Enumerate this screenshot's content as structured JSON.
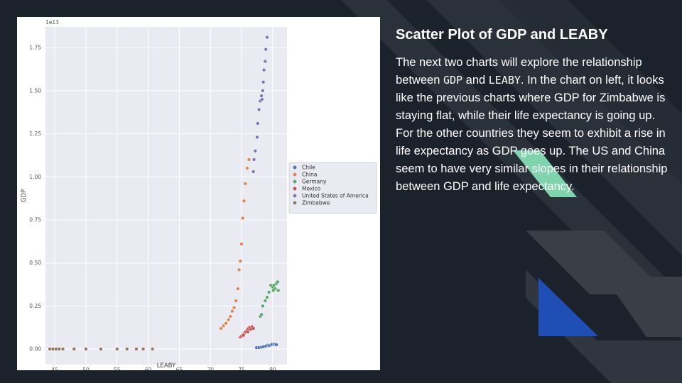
{
  "slide": {
    "title": "Scatter Plot of GDP and LEABY",
    "body_parts": [
      {
        "text": "The next two charts will explore the relationship between ",
        "mono": false
      },
      {
        "text": "GDP",
        "mono": true
      },
      {
        "text": " and ",
        "mono": false
      },
      {
        "text": "LEABY",
        "mono": true
      },
      {
        "text": ". In the chart on left, it looks like the previous charts where GDP for Zimbabwe is staying flat, while their life expectancy is going up. For the other countries they seem to exhibit a rise in life expectancy as GDP goes up. The US and China seem to have very similar slopes in their relationship between GDP and life expectancy.",
        "mono": false
      }
    ]
  },
  "colors": {
    "background": "#1c222c",
    "decor_dark": "#2b313b",
    "decor_mid": "#3a3f47",
    "decor_green": "#7fd3ad",
    "decor_blue": "#1f4fb5",
    "plot_bg": "#eaeaf2"
  },
  "chart_data": {
    "type": "scatter",
    "xlabel": "LEABY",
    "ylabel": "GDP",
    "y_offset_label": "1e13",
    "xlim": [
      43.5,
      82.3
    ],
    "ylim": [
      -0.09,
      1.87
    ],
    "x_ticks": [
      45,
      50,
      55,
      60,
      65,
      70,
      75,
      80
    ],
    "y_ticks": [
      0.0,
      0.25,
      0.5,
      0.75,
      1.0,
      1.25,
      1.5,
      1.75
    ],
    "y_tick_labels": [
      "0.00",
      "0.25",
      "0.50",
      "0.75",
      "1.00",
      "1.25",
      "1.50",
      "1.75"
    ],
    "grid": true,
    "legend_position": "right",
    "series": [
      {
        "name": "Chile",
        "color": "#4c72b0",
        "points": [
          [
            77.4,
            0.008
          ],
          [
            77.8,
            0.009
          ],
          [
            78.2,
            0.011
          ],
          [
            78.5,
            0.013
          ],
          [
            78.9,
            0.017
          ],
          [
            79.2,
            0.022
          ],
          [
            79.4,
            0.02
          ],
          [
            79.7,
            0.024
          ],
          [
            79.9,
            0.027
          ],
          [
            80.2,
            0.028
          ],
          [
            80.4,
            0.027
          ],
          [
            80.6,
            0.025
          ]
        ]
      },
      {
        "name": "China",
        "color": "#dd8452",
        "points": [
          [
            71.7,
            0.12
          ],
          [
            72.1,
            0.135
          ],
          [
            72.5,
            0.15
          ],
          [
            72.9,
            0.17
          ],
          [
            73.2,
            0.19
          ],
          [
            73.5,
            0.22
          ],
          [
            73.8,
            0.24
          ],
          [
            74.1,
            0.28
          ],
          [
            74.4,
            0.35
          ],
          [
            74.6,
            0.46
          ],
          [
            74.8,
            0.51
          ],
          [
            75.0,
            0.61
          ],
          [
            75.2,
            0.76
          ],
          [
            75.4,
            0.86
          ],
          [
            75.6,
            0.96
          ],
          [
            75.9,
            1.05
          ],
          [
            76.2,
            1.1
          ]
        ]
      },
      {
        "name": "Germany",
        "color": "#55a868",
        "points": [
          [
            78.0,
            0.19
          ],
          [
            78.2,
            0.2
          ],
          [
            78.4,
            0.25
          ],
          [
            78.8,
            0.28
          ],
          [
            79.1,
            0.3
          ],
          [
            79.4,
            0.33
          ],
          [
            79.7,
            0.37
          ],
          [
            80.0,
            0.36
          ],
          [
            80.2,
            0.37
          ],
          [
            80.4,
            0.35
          ],
          [
            80.6,
            0.38
          ],
          [
            80.8,
            0.39
          ],
          [
            80.9,
            0.34
          ],
          [
            80.1,
            0.34
          ]
        ]
      },
      {
        "name": "Mexico",
        "color": "#c44e52",
        "points": [
          [
            74.8,
            0.07
          ],
          [
            75.0,
            0.075
          ],
          [
            75.2,
            0.08
          ],
          [
            75.4,
            0.09
          ],
          [
            75.6,
            0.1
          ],
          [
            75.7,
            0.1
          ],
          [
            75.9,
            0.11
          ],
          [
            76.1,
            0.12
          ],
          [
            76.3,
            0.125
          ],
          [
            76.5,
            0.115
          ],
          [
            76.7,
            0.13
          ],
          [
            76.9,
            0.12
          ],
          [
            75.3,
            0.08
          ],
          [
            76.0,
            0.1
          ]
        ]
      },
      {
        "name": "United States of America",
        "color": "#8172b3",
        "points": [
          [
            76.9,
            1.03
          ],
          [
            77.0,
            1.1
          ],
          [
            77.2,
            1.15
          ],
          [
            77.5,
            1.23
          ],
          [
            77.6,
            1.31
          ],
          [
            77.8,
            1.39
          ],
          [
            78.0,
            1.44
          ],
          [
            78.2,
            1.47
          ],
          [
            78.3,
            1.45
          ],
          [
            78.4,
            1.5
          ],
          [
            78.5,
            1.55
          ],
          [
            78.6,
            1.62
          ],
          [
            78.8,
            1.67
          ],
          [
            78.9,
            1.74
          ],
          [
            79.1,
            1.81
          ]
        ]
      },
      {
        "name": "Zimbabwe",
        "color": "#937860",
        "points": [
          [
            44.2,
            0.0
          ],
          [
            44.7,
            0.0
          ],
          [
            45.2,
            0.0
          ],
          [
            45.7,
            0.0
          ],
          [
            46.3,
            0.0
          ],
          [
            48.1,
            0.0
          ],
          [
            50.0,
            0.0
          ],
          [
            52.4,
            0.0
          ],
          [
            55.0,
            0.0
          ],
          [
            56.6,
            0.0
          ],
          [
            58.1,
            0.0
          ],
          [
            59.2,
            0.0
          ],
          [
            60.7,
            0.0
          ]
        ]
      }
    ]
  }
}
